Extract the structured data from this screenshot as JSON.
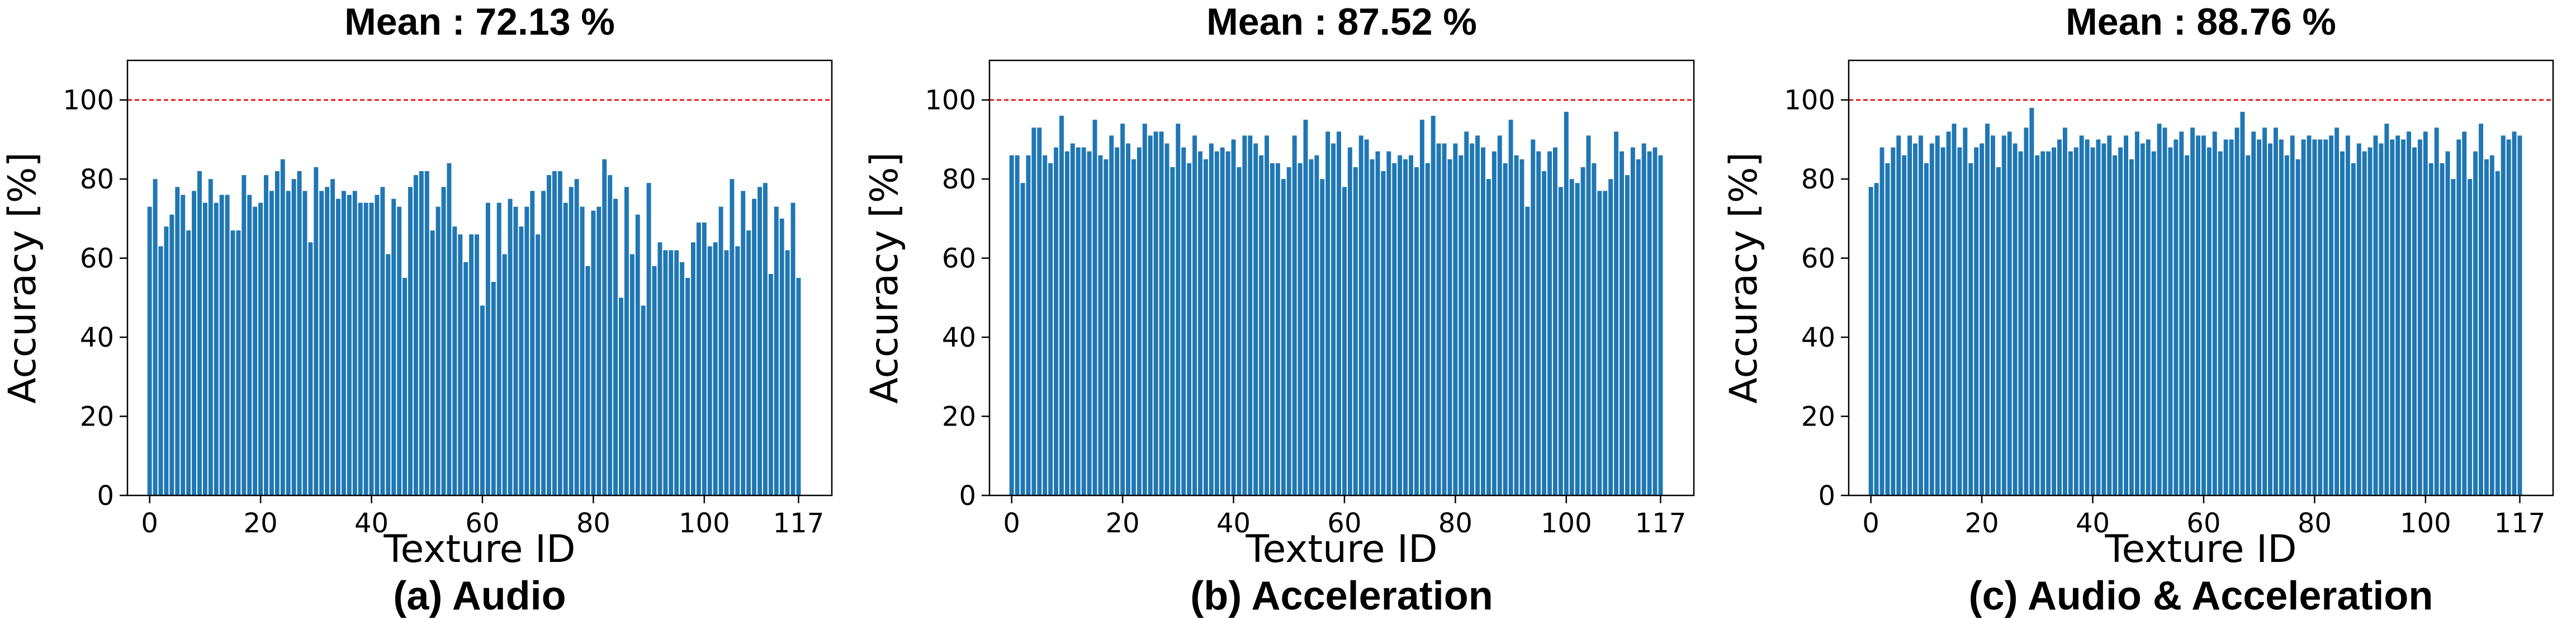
{
  "chart_data": [
    {
      "type": "bar",
      "title": "Mean : 72.13 %",
      "caption": "(a) Audio",
      "xlabel": "Texture ID",
      "ylabel": "Accuracy [%]",
      "xlim": [
        -4,
        123
      ],
      "ylim": [
        0,
        110
      ],
      "xticks": [
        "0",
        "20",
        "40",
        "60",
        "80",
        "100",
        "117"
      ],
      "yticks": [
        "0",
        "20",
        "40",
        "60",
        "80",
        "100"
      ],
      "reference_line": 100,
      "bar_color": "#1f77b4",
      "reference_color": "#e41a1c",
      "values": [
        73,
        80,
        63,
        68,
        71,
        78,
        76,
        67,
        77,
        82,
        74,
        80,
        74,
        76,
        76,
        67,
        67,
        81,
        76,
        73,
        74,
        81,
        77,
        82,
        85,
        77,
        80,
        82,
        77,
        64,
        83,
        77,
        78,
        80,
        75,
        77,
        76,
        77,
        74,
        74,
        74,
        76,
        78,
        61,
        75,
        73,
        55,
        78,
        81,
        82,
        82,
        67,
        73,
        78,
        84,
        68,
        66,
        59,
        66,
        66,
        48,
        74,
        54,
        74,
        61,
        75,
        73,
        68,
        73,
        77,
        66,
        77,
        81,
        82,
        82,
        74,
        78,
        80,
        73,
        58,
        72,
        73,
        85,
        81,
        75,
        50,
        78,
        61,
        71,
        48,
        79,
        58,
        64,
        62,
        62,
        62,
        59,
        55,
        64,
        69,
        69,
        63,
        64,
        73,
        62,
        80,
        63,
        77,
        67,
        75,
        78,
        79,
        56,
        73,
        70,
        62,
        74,
        55
      ]
    },
    {
      "type": "bar",
      "title": "Mean : 87.52 %",
      "caption": "(b) Acceleration",
      "xlabel": "Texture ID",
      "ylabel": "Accuracy [%]",
      "xlim": [
        -4,
        123
      ],
      "ylim": [
        0,
        110
      ],
      "xticks": [
        "0",
        "20",
        "40",
        "60",
        "80",
        "100",
        "117"
      ],
      "yticks": [
        "0",
        "20",
        "40",
        "60",
        "80",
        "100"
      ],
      "reference_line": 100,
      "bar_color": "#1f77b4",
      "reference_color": "#e41a1c",
      "values": [
        86,
        86,
        79,
        86,
        93,
        93,
        86,
        84,
        88,
        96,
        87,
        89,
        88,
        88,
        87,
        95,
        86,
        85,
        91,
        88,
        94,
        89,
        85,
        88,
        94,
        91,
        92,
        92,
        89,
        83,
        94,
        88,
        84,
        91,
        87,
        85,
        89,
        87,
        88,
        87,
        90,
        83,
        91,
        91,
        89,
        86,
        91,
        84,
        84,
        80,
        83,
        91,
        84,
        95,
        85,
        86,
        80,
        92,
        89,
        92,
        78,
        88,
        83,
        91,
        90,
        85,
        87,
        82,
        87,
        84,
        86,
        85,
        86,
        83,
        95,
        84,
        96,
        89,
        89,
        85,
        89,
        86,
        92,
        89,
        91,
        88,
        80,
        87,
        91,
        84,
        95,
        86,
        85,
        73,
        90,
        87,
        82,
        87,
        88,
        78,
        97,
        80,
        79,
        83,
        91,
        84,
        77,
        77,
        80,
        92,
        87,
        81,
        88,
        85,
        89,
        87,
        88,
        86
      ]
    },
    {
      "type": "bar",
      "title": "Mean : 88.76 %",
      "caption": "(c) Audio & Acceleration",
      "xlabel": "Texture ID",
      "ylabel": "Accuracy [%]",
      "xlim": [
        -4,
        123
      ],
      "ylim": [
        0,
        110
      ],
      "xticks": [
        "0",
        "20",
        "40",
        "60",
        "80",
        "100",
        "117"
      ],
      "yticks": [
        "0",
        "20",
        "40",
        "60",
        "80",
        "100"
      ],
      "reference_line": 100,
      "bar_color": "#1f77b4",
      "reference_color": "#e41a1c",
      "values": [
        78,
        79,
        88,
        84,
        88,
        91,
        86,
        91,
        89,
        91,
        84,
        89,
        91,
        88,
        92,
        94,
        88,
        93,
        84,
        88,
        89,
        94,
        91,
        83,
        91,
        92,
        89,
        87,
        93,
        98,
        86,
        87,
        87,
        88,
        90,
        93,
        87,
        88,
        91,
        90,
        88,
        90,
        89,
        91,
        86,
        88,
        91,
        85,
        92,
        89,
        90,
        87,
        94,
        93,
        88,
        90,
        92,
        86,
        93,
        91,
        91,
        88,
        92,
        87,
        90,
        90,
        93,
        97,
        86,
        92,
        90,
        93,
        89,
        93,
        90,
        86,
        91,
        85,
        90,
        91,
        90,
        90,
        90,
        91,
        93,
        87,
        91,
        84,
        89,
        87,
        88,
        91,
        89,
        94,
        90,
        91,
        90,
        92,
        88,
        90,
        92,
        84,
        93,
        84,
        87,
        80,
        90,
        92,
        80,
        87,
        94,
        85,
        86,
        82,
        91,
        90,
        92,
        91
      ]
    }
  ]
}
